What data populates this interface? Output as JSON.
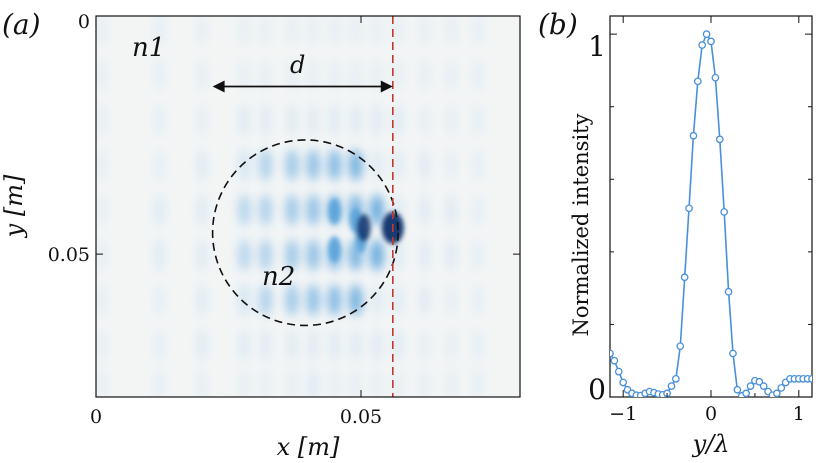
{
  "colors": {
    "background": "#ffffff",
    "map_background": "#f3f5f5",
    "light_blue": "#cfe3f2",
    "mid_blue": "#5aa3da",
    "dark_blue": "#08306b",
    "red_dashed": "#c0392b",
    "curve_blue": "#4a90d9",
    "axis": "#111111"
  },
  "chart_data": [
    {
      "panel_label": "(a)",
      "type": "heatmap",
      "colormap": "white-to-blue",
      "xlabel": "x [m]",
      "ylabel": "y [m]",
      "xlim": [
        0,
        0.08
      ],
      "ylim": [
        0.08,
        0
      ],
      "x_ticks": [
        0,
        0.05
      ],
      "x_tick_labels": [
        "0",
        "0.05"
      ],
      "y_ticks": [
        0,
        0.05
      ],
      "y_tick_labels": [
        "0",
        "0.05"
      ],
      "annotations": {
        "region_outer": "n1",
        "region_inner": "n2",
        "distance_label": "d"
      },
      "circle": {
        "center_x": 0.0395,
        "center_y": 0.0455,
        "radius": 0.0175
      },
      "focus_line_x": 0.056,
      "distance_arrow": {
        "x_start": 0.022,
        "x_end": 0.056,
        "y": 0.0148
      },
      "wave_crests_x": [
        0.001,
        0.012,
        0.02,
        0.028,
        0.032,
        0.037,
        0.041,
        0.045,
        0.049,
        0.053,
        0.057,
        0.062,
        0.067,
        0.072
      ],
      "focal_spot": {
        "x": 0.056,
        "y": 0.0445
      }
    },
    {
      "panel_label": "(b)",
      "type": "line",
      "xlabel": "y/λ",
      "ylabel": "Normalized intensity",
      "xlim": [
        -1.15,
        1.15
      ],
      "ylim": [
        0,
        1.05
      ],
      "x_ticks": [
        -1,
        0,
        1
      ],
      "x_tick_labels": [
        "−1",
        "0",
        "1"
      ],
      "y_ticks": [
        0,
        1
      ],
      "y_tick_labels": [
        "0",
        "1"
      ],
      "series": [
        {
          "name": "intensity",
          "marker": "circle",
          "x": [
            -1.15,
            -1.1,
            -1.05,
            -1.0,
            -0.95,
            -0.9,
            -0.85,
            -0.8,
            -0.75,
            -0.7,
            -0.65,
            -0.6,
            -0.55,
            -0.5,
            -0.45,
            -0.4,
            -0.35,
            -0.3,
            -0.25,
            -0.2,
            -0.15,
            -0.1,
            -0.05,
            0.0,
            0.05,
            0.1,
            0.15,
            0.2,
            0.25,
            0.3,
            0.35,
            0.4,
            0.45,
            0.5,
            0.55,
            0.6,
            0.65,
            0.7,
            0.75,
            0.8,
            0.85,
            0.9,
            0.95,
            1.0,
            1.05,
            1.1,
            1.15
          ],
          "y": [
            0.12,
            0.1,
            0.07,
            0.04,
            0.02,
            0.01,
            0.005,
            0.004,
            0.01,
            0.015,
            0.012,
            0.008,
            0.006,
            0.01,
            0.03,
            0.05,
            0.14,
            0.33,
            0.52,
            0.72,
            0.87,
            0.97,
            1.0,
            0.98,
            0.88,
            0.71,
            0.51,
            0.29,
            0.12,
            0.02,
            0.003,
            0.01,
            0.03,
            0.045,
            0.042,
            0.03,
            0.015,
            0.005,
            0.01,
            0.025,
            0.04,
            0.05,
            0.05,
            0.05,
            0.05,
            0.05,
            0.05
          ]
        }
      ]
    }
  ]
}
